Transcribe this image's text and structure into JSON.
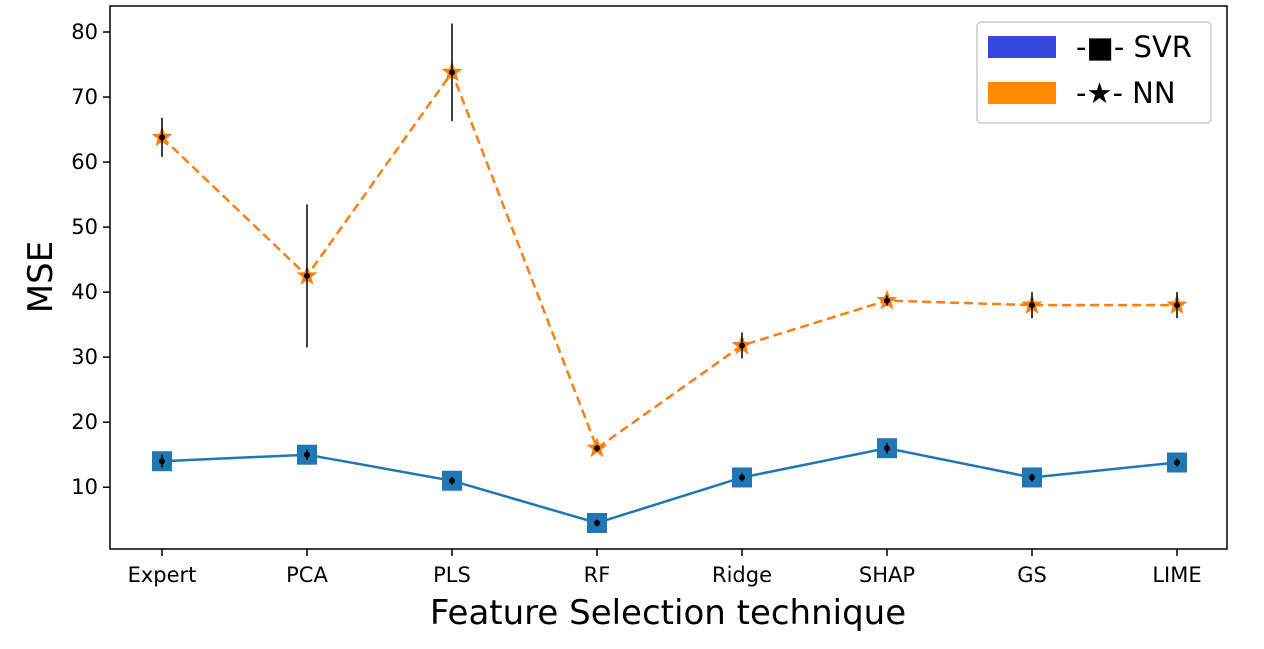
{
  "chart_data": {
    "type": "line",
    "title": "",
    "xlabel": "Feature Selection technique",
    "ylabel": "MSE",
    "categories": [
      "Expert",
      "PCA",
      "PLS",
      "RF",
      "Ridge",
      "SHAP",
      "GS",
      "LIME"
    ],
    "ylim": [
      0.5,
      84
    ],
    "yticks": [
      10,
      20,
      30,
      40,
      50,
      60,
      70,
      80
    ],
    "grid": false,
    "legend_position": "top-right",
    "series": [
      {
        "name": "-■- SVR",
        "legend_swatch_color": "#3547dc",
        "line_color": "#1f77b4",
        "line_style": "solid",
        "marker": "square",
        "values": [
          14.0,
          15.0,
          11.0,
          4.5,
          11.5,
          16.0,
          11.5,
          13.8
        ],
        "error": [
          1.0,
          0.8,
          0.6,
          0.5,
          0.6,
          0.8,
          0.6,
          0.6
        ]
      },
      {
        "name": "-★- NN",
        "legend_swatch_color": "#ff8c00",
        "line_color": "#ff7f0e",
        "line_style": "dashed",
        "marker": "star",
        "values": [
          63.8,
          42.5,
          73.8,
          16.0,
          31.8,
          38.7,
          38.0,
          38.0
        ],
        "error": [
          3.0,
          11.0,
          7.5,
          0.5,
          2.0,
          0.8,
          2.0,
          2.0
        ]
      }
    ]
  }
}
